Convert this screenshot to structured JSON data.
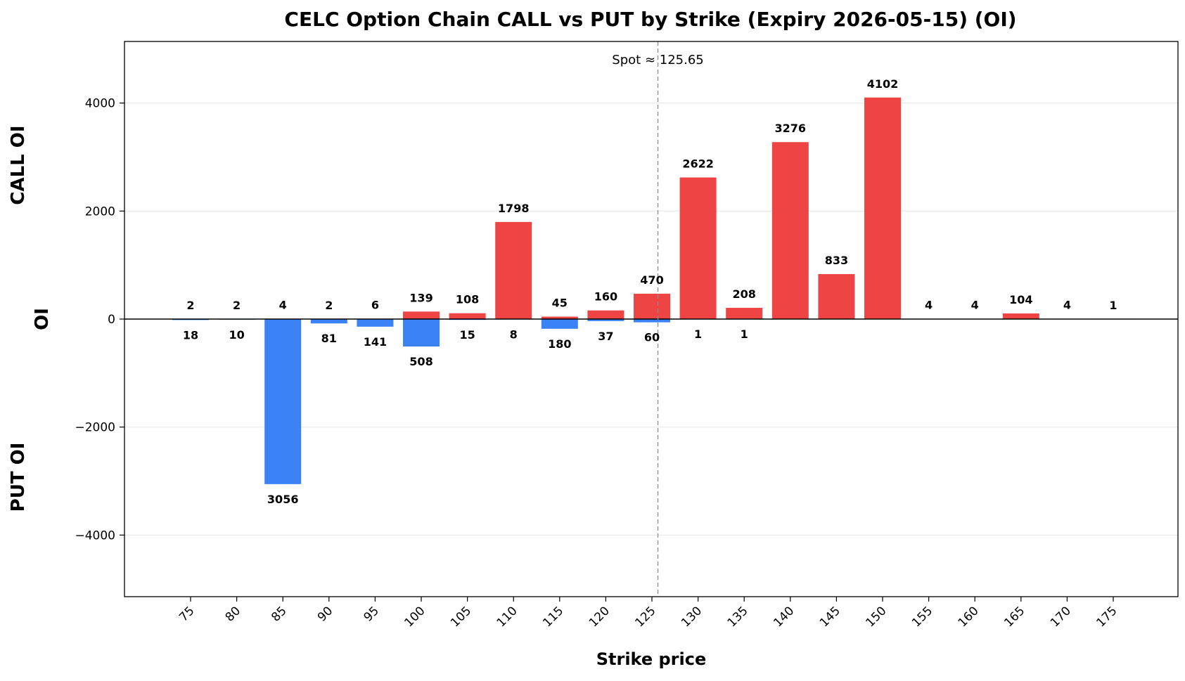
{
  "chart_data": {
    "type": "bar",
    "title": "CELC Option Chain CALL vs PUT by Strike (Expiry 2026-05-15) (OI)",
    "xlabel": "Strike price",
    "ylabel": "OI",
    "upper_label": "CALL OI",
    "lower_label": "PUT OI",
    "ylim": [
      -5140,
      5140
    ],
    "yticks": [
      -4000,
      -2000,
      0,
      2000,
      4000
    ],
    "ytick_labels": [
      "−4000",
      "−2000",
      "0",
      "2000",
      "4000"
    ],
    "grid": true,
    "categories": [
      "75",
      "80",
      "85",
      "90",
      "95",
      "100",
      "105",
      "110",
      "115",
      "120",
      "125",
      "130",
      "135",
      "140",
      "145",
      "150",
      "155",
      "160",
      "165",
      "170",
      "175"
    ],
    "series": [
      {
        "name": "CALL",
        "color": "#ef4444",
        "values": [
          2,
          2,
          4,
          2,
          6,
          139,
          108,
          1798,
          45,
          160,
          470,
          2622,
          208,
          3276,
          833,
          4102,
          4,
          4,
          104,
          4,
          1
        ],
        "labels": [
          "2",
          "2",
          "4",
          "2",
          "6",
          "139",
          "108",
          "1798",
          "45",
          "160",
          "470",
          "2622",
          "208",
          "3276",
          "833",
          "4102",
          "4",
          "4",
          "104",
          "4",
          "1"
        ]
      },
      {
        "name": "PUT",
        "color": "#3b82f6",
        "values": [
          18,
          10,
          3056,
          81,
          141,
          508,
          15,
          8,
          180,
          37,
          60,
          1,
          1,
          null,
          null,
          null,
          null,
          null,
          null,
          null,
          null
        ],
        "labels": [
          "18",
          "10",
          "3056",
          "81",
          "141",
          "508",
          "15",
          "8",
          "180",
          "37",
          "60",
          "1",
          "1",
          "",
          "",
          "",
          "",
          "",
          "",
          "",
          ""
        ]
      }
    ],
    "spot": {
      "value": 125.65,
      "label": "Spot ≈ 125.65"
    }
  }
}
